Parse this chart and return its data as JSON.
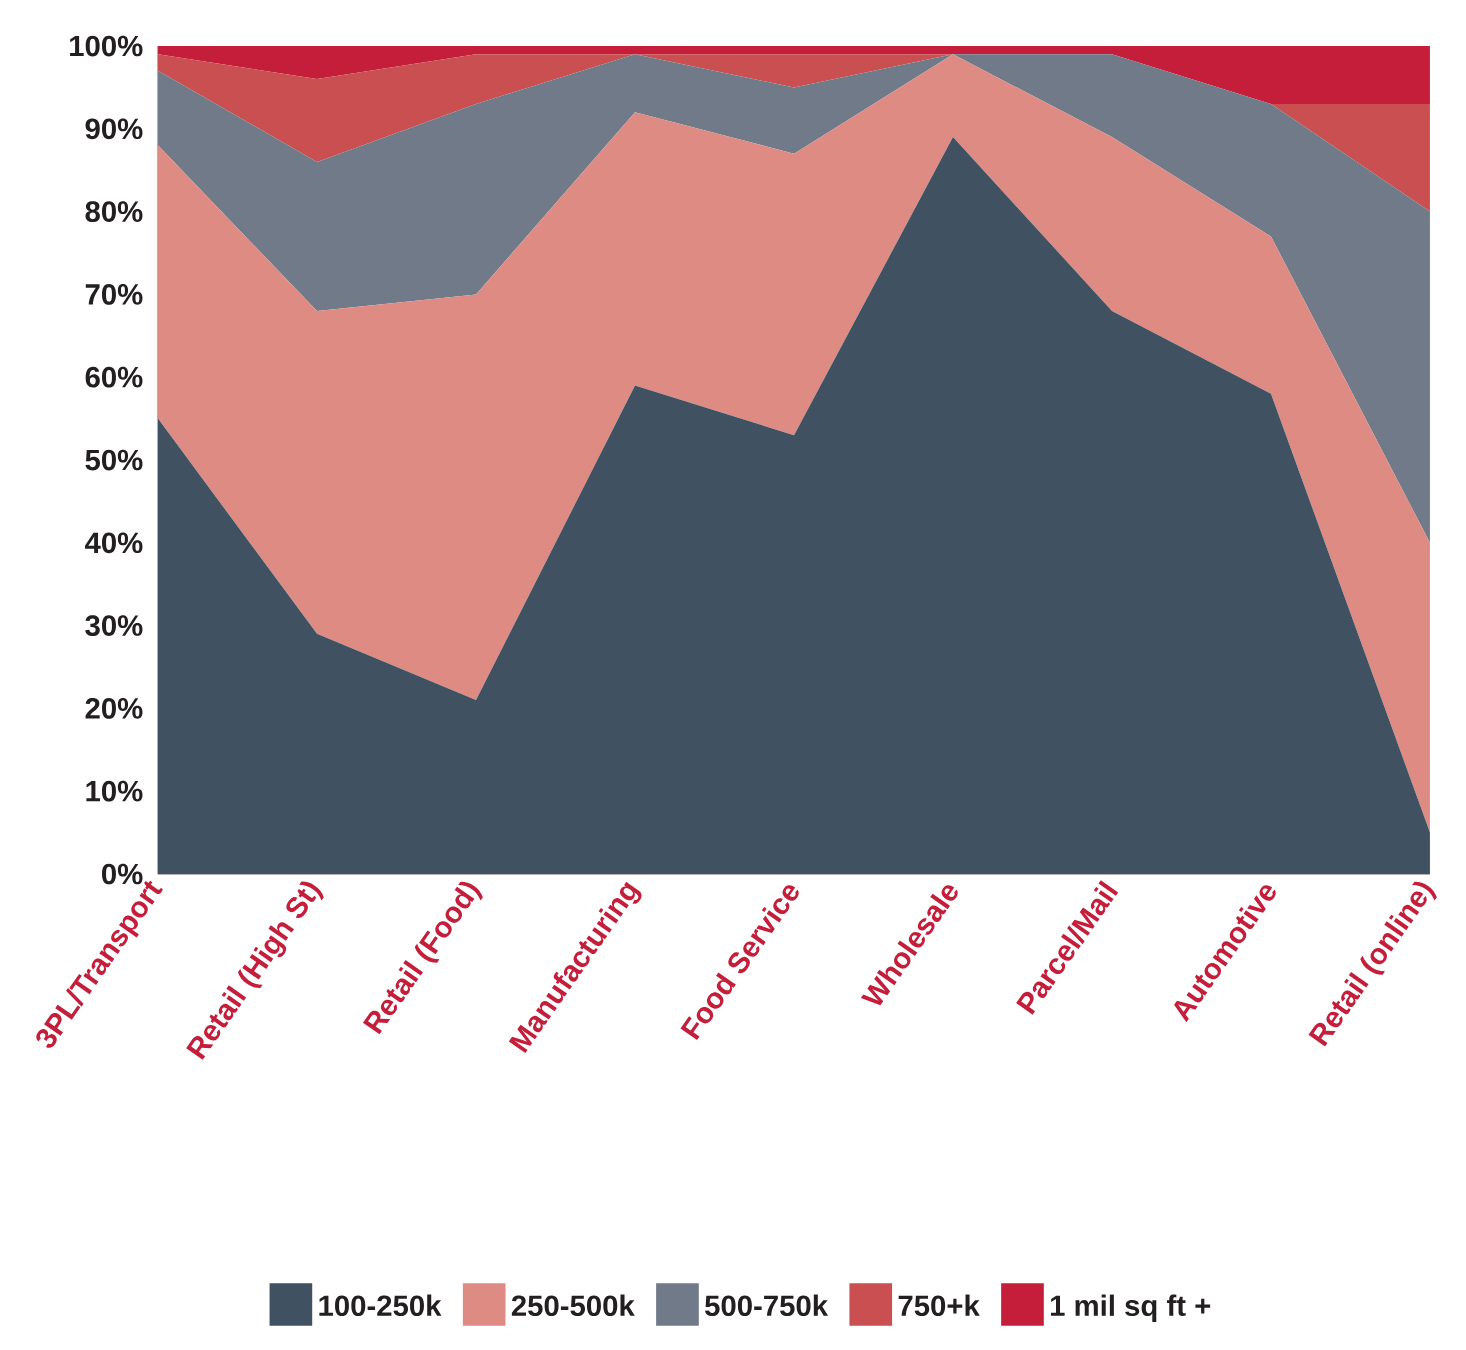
{
  "chart_data": {
    "type": "area",
    "stacked": true,
    "categories": [
      "3PL/Transport",
      "Retail (High St)",
      "Retail (Food)",
      "Manufacturing",
      "Food Service",
      "Wholesale",
      "Parcel/Mail",
      "Automotive",
      "Retail (online)"
    ],
    "series": [
      {
        "name": "100-250k",
        "color": "#405262",
        "values": [
          55,
          29,
          21,
          59,
          53,
          89,
          68,
          58,
          5
        ]
      },
      {
        "name": "250-500k",
        "color": "#dd8b83",
        "values": [
          33,
          39,
          49,
          33,
          34,
          10,
          21,
          19,
          35
        ]
      },
      {
        "name": "500-750k",
        "color": "#707a88",
        "values": [
          9,
          18,
          23,
          7,
          8,
          0,
          10,
          16,
          40
        ]
      },
      {
        "name": "750+k",
        "color": "#c94f51",
        "values": [
          2,
          10,
          6,
          0,
          4,
          0,
          0,
          0,
          13
        ]
      },
      {
        "name": "1 mil sq ft +",
        "color": "#c41e3a",
        "values": [
          1,
          4,
          1,
          1,
          1,
          1,
          1,
          7,
          7
        ]
      }
    ],
    "ylim": [
      0,
      100
    ],
    "yticks": [
      {
        "value": 0,
        "label": "0%"
      },
      {
        "value": 10,
        "label": "10%"
      },
      {
        "value": 20,
        "label": "20%"
      },
      {
        "value": 30,
        "label": "30%"
      },
      {
        "value": 40,
        "label": "40%"
      },
      {
        "value": 50,
        "label": "50%"
      },
      {
        "value": 60,
        "label": "60%"
      },
      {
        "value": 70,
        "label": "70%"
      },
      {
        "value": 80,
        "label": "80%"
      },
      {
        "value": 90,
        "label": "90%"
      },
      {
        "value": 100,
        "label": "100%"
      }
    ],
    "legend": "bottom"
  }
}
